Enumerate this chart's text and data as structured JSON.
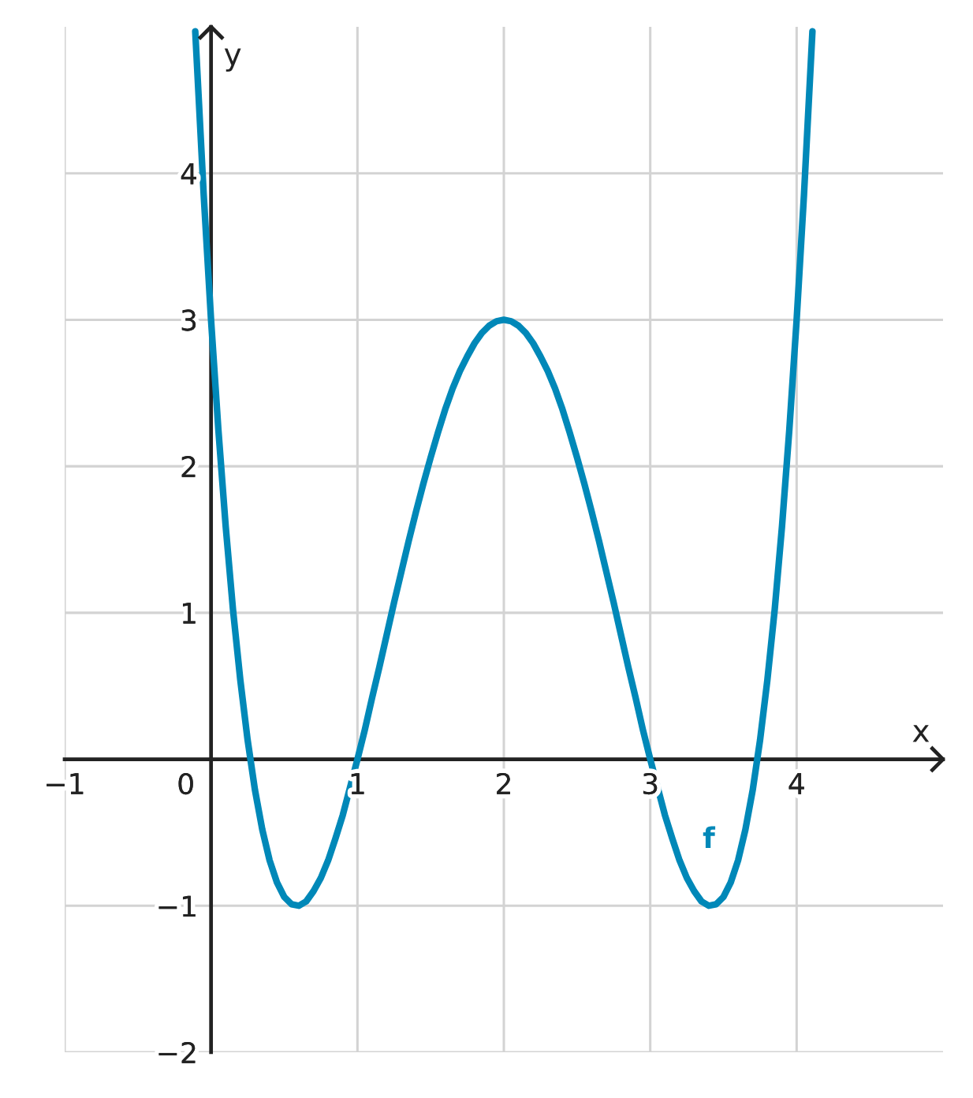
{
  "chart_data": {
    "type": "line",
    "xlabel": "x",
    "ylabel": "y",
    "x": [
      -0.108,
      -0.05,
      0,
      0.05,
      0.1,
      0.15,
      0.2,
      0.25,
      0.3,
      0.35,
      0.4,
      0.45,
      0.5,
      0.55,
      0.6,
      0.65,
      0.7,
      0.75,
      0.8,
      0.85,
      0.9,
      0.95,
      1.0,
      1.05,
      1.1,
      1.15,
      1.2,
      1.25,
      1.3,
      1.35,
      1.4,
      1.45,
      1.5,
      1.55,
      1.6,
      1.65,
      1.7,
      1.75,
      1.8,
      1.85,
      1.9,
      1.95,
      2.0,
      2.05,
      2.1,
      2.15,
      2.2,
      2.25,
      2.3,
      2.35,
      2.4,
      2.45,
      2.5,
      2.55,
      2.6,
      2.65,
      2.7,
      2.75,
      2.8,
      2.85,
      2.9,
      2.95,
      3.0,
      3.05,
      3.1,
      3.15,
      3.2,
      3.25,
      3.3,
      3.35,
      3.4,
      3.45,
      3.5,
      3.55,
      3.6,
      3.65,
      3.7,
      3.75,
      3.8,
      3.85,
      3.9,
      3.95,
      4.0,
      4.05,
      4.108
    ],
    "series": [
      {
        "name": "f",
        "color": "#0088b8",
        "values": [
          4.97,
          3.85,
          3,
          2.25,
          1.59,
          1.02,
          0.54,
          0.13,
          -0.21,
          -0.48,
          -0.69,
          -0.84,
          -0.94,
          -0.99,
          -1.0,
          -0.97,
          -0.9,
          -0.81,
          -0.69,
          -0.54,
          -0.38,
          -0.19,
          0,
          0.2,
          0.42,
          0.63,
          0.85,
          1.07,
          1.28,
          1.49,
          1.69,
          1.88,
          2.06,
          2.23,
          2.39,
          2.53,
          2.65,
          2.75,
          2.84,
          2.91,
          2.96,
          2.99,
          3,
          2.99,
          2.96,
          2.91,
          2.84,
          2.75,
          2.65,
          2.53,
          2.39,
          2.23,
          2.06,
          1.88,
          1.69,
          1.49,
          1.28,
          1.07,
          0.85,
          0.63,
          0.42,
          0.2,
          0,
          -0.19,
          -0.38,
          -0.54,
          -0.69,
          -0.81,
          -0.9,
          -0.97,
          -1.0,
          -0.99,
          -0.94,
          -0.84,
          -0.69,
          -0.48,
          -0.21,
          0.13,
          0.54,
          1.02,
          1.59,
          2.25,
          3,
          3.85,
          4.97
        ]
      }
    ],
    "xlim": [
      -1,
      5
    ],
    "ylim": [
      -2,
      5
    ],
    "xticks": [
      {
        "value": -1,
        "label": "−1"
      },
      {
        "value": 0,
        "label": "0"
      },
      1,
      2,
      3,
      4
    ],
    "yticks": [
      {
        "value": -2,
        "label": "−2"
      },
      {
        "value": -1,
        "label": "−1"
      },
      1,
      2,
      3,
      4
    ],
    "grid": true,
    "legend": false,
    "line_style": "solid"
  }
}
